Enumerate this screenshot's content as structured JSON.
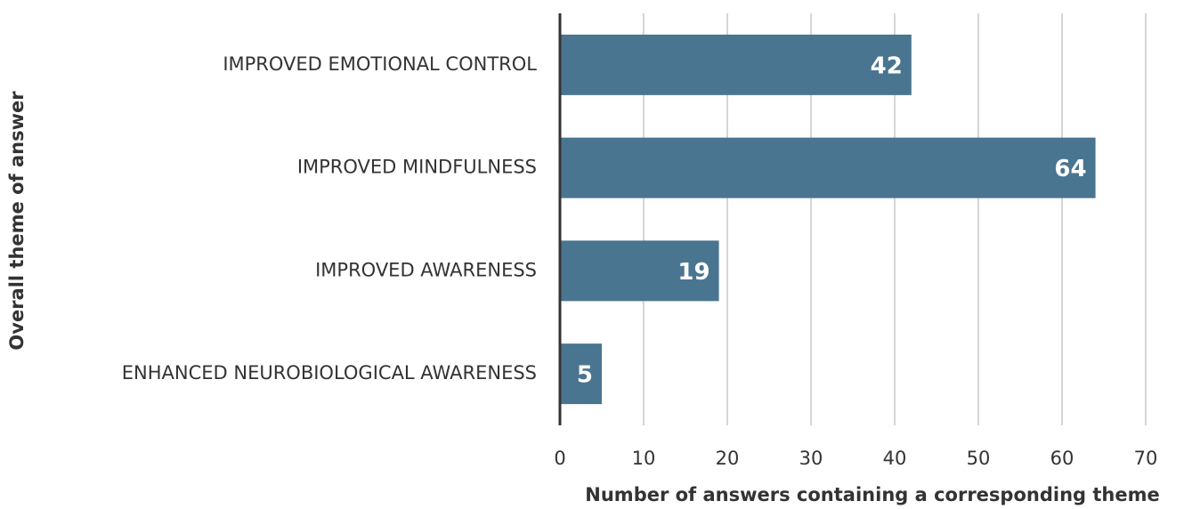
{
  "chart_data": {
    "type": "bar",
    "orientation": "horizontal",
    "categories": [
      "IMPROVED EMOTIONAL CONTROL",
      "IMPROVED MINDFULNESS",
      "IMPROVED AWARENESS",
      "ENHANCED NEUROBIOLOGICAL AWARENESS"
    ],
    "values": [
      42,
      64,
      19,
      5
    ],
    "color": "#4a7590",
    "xlim": [
      0,
      70
    ],
    "xticks": [
      0,
      10,
      20,
      30,
      40,
      50,
      60,
      70
    ],
    "grid": true,
    "x_label": "Number of answers containing a corresponding theme",
    "y_label": "Overall theme of answer"
  }
}
